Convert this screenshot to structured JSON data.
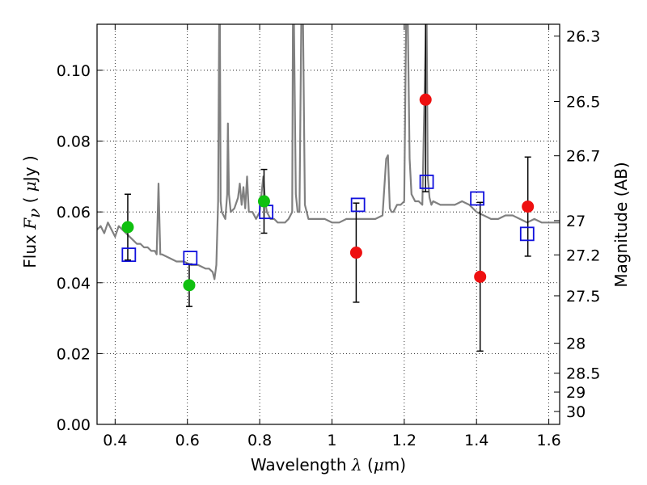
{
  "chart_data": {
    "type": "scatter",
    "title": "",
    "xlabel": {
      "prefix": "Wavelength",
      "symbol": "λ",
      "unit_open": " (",
      "unit_mu": "μ",
      "unit_rest": "m)"
    },
    "ylabel": {
      "prefix": "Flux",
      "symbol": "F",
      "subscript": "ν",
      "unit_open": "( ",
      "unit_mu": "μ",
      "unit_rest": "Jy )"
    },
    "y2label": "Magnitude (AB)",
    "xlim": [
      0.35,
      1.63
    ],
    "ylim": [
      0.0,
      0.113
    ],
    "grid": true,
    "x_ticks": [
      0.4,
      0.6,
      0.8,
      1.0,
      1.2,
      1.4,
      1.6
    ],
    "x_tick_labels": [
      "0.4",
      "0.6",
      "0.8",
      "1",
      "1.2",
      "1.4",
      "1.6"
    ],
    "y_ticks": [
      0.0,
      0.02,
      0.04,
      0.06,
      0.08,
      0.1
    ],
    "y_tick_labels": [
      "0.00",
      "0.02",
      "0.04",
      "0.06",
      "0.08",
      "0.10"
    ],
    "magnitude_ticks": [
      "26.3",
      "26.5",
      "26.7",
      "27",
      "27.2",
      "27.5",
      "28",
      "28.5",
      "29",
      "30"
    ],
    "colors": {
      "spectrum": "#808080",
      "green": "#10c010",
      "red": "#ee1010",
      "model": "#1010dd",
      "errorbar": "#000000"
    },
    "spectrum": {
      "x": [
        0.35,
        0.36,
        0.37,
        0.38,
        0.39,
        0.4,
        0.41,
        0.42,
        0.43,
        0.44,
        0.45,
        0.46,
        0.47,
        0.48,
        0.49,
        0.5,
        0.51,
        0.515,
        0.52,
        0.525,
        0.53,
        0.55,
        0.57,
        0.59,
        0.61,
        0.63,
        0.65,
        0.66,
        0.67,
        0.675,
        0.68,
        0.685,
        0.688,
        0.69,
        0.692,
        0.695,
        0.7,
        0.705,
        0.71,
        0.712,
        0.715,
        0.72,
        0.73,
        0.74,
        0.745,
        0.75,
        0.755,
        0.76,
        0.765,
        0.77,
        0.78,
        0.79,
        0.8,
        0.805,
        0.81,
        0.815,
        0.82,
        0.83,
        0.84,
        0.85,
        0.86,
        0.87,
        0.88,
        0.89,
        0.892,
        0.895,
        0.9,
        0.905,
        0.91,
        0.915,
        0.92,
        0.925,
        0.93,
        0.935,
        0.94,
        0.96,
        0.98,
        1.0,
        1.02,
        1.04,
        1.06,
        1.08,
        1.1,
        1.12,
        1.14,
        1.15,
        1.155,
        1.16,
        1.165,
        1.17,
        1.18,
        1.19,
        1.2,
        1.205,
        1.21,
        1.215,
        1.22,
        1.23,
        1.24,
        1.25,
        1.26,
        1.262,
        1.265,
        1.27,
        1.275,
        1.28,
        1.3,
        1.32,
        1.34,
        1.36,
        1.38,
        1.4,
        1.42,
        1.44,
        1.46,
        1.48,
        1.5,
        1.52,
        1.54,
        1.56,
        1.58,
        1.6,
        1.62,
        1.63
      ],
      "y": [
        0.055,
        0.056,
        0.054,
        0.057,
        0.055,
        0.053,
        0.056,
        0.055,
        0.054,
        0.053,
        0.052,
        0.051,
        0.051,
        0.05,
        0.05,
        0.049,
        0.049,
        0.048,
        0.068,
        0.048,
        0.048,
        0.047,
        0.046,
        0.046,
        0.045,
        0.045,
        0.044,
        0.044,
        0.043,
        0.041,
        0.045,
        0.063,
        0.113,
        0.113,
        0.063,
        0.06,
        0.059,
        0.058,
        0.065,
        0.085,
        0.065,
        0.06,
        0.061,
        0.064,
        0.068,
        0.062,
        0.067,
        0.061,
        0.07,
        0.06,
        0.06,
        0.058,
        0.06,
        0.065,
        0.07,
        0.063,
        0.06,
        0.058,
        0.058,
        0.057,
        0.057,
        0.057,
        0.058,
        0.06,
        0.113,
        0.113,
        0.065,
        0.06,
        0.06,
        0.113,
        0.113,
        0.062,
        0.06,
        0.058,
        0.058,
        0.058,
        0.058,
        0.057,
        0.057,
        0.058,
        0.058,
        0.058,
        0.058,
        0.058,
        0.059,
        0.075,
        0.076,
        0.061,
        0.06,
        0.06,
        0.062,
        0.062,
        0.063,
        0.113,
        0.113,
        0.075,
        0.065,
        0.063,
        0.063,
        0.062,
        0.113,
        0.113,
        0.07,
        0.064,
        0.062,
        0.063,
        0.062,
        0.062,
        0.062,
        0.063,
        0.062,
        0.06,
        0.059,
        0.058,
        0.058,
        0.059,
        0.059,
        0.058,
        0.057,
        0.058,
        0.057,
        0.057,
        0.057,
        0.057
      ]
    },
    "observed_green": [
      {
        "x": 0.435,
        "y": 0.0557,
        "err": 0.0093
      },
      {
        "x": 0.605,
        "y": 0.0393,
        "err": 0.006
      },
      {
        "x": 0.812,
        "y": 0.063,
        "err": 0.009
      }
    ],
    "observed_red": [
      {
        "x": 1.067,
        "y": 0.0485,
        "err": 0.014
      },
      {
        "x": 1.259,
        "y": 0.0917,
        "err": 0.026
      },
      {
        "x": 1.41,
        "y": 0.0417,
        "err": 0.021
      },
      {
        "x": 1.542,
        "y": 0.0615,
        "err": 0.014
      }
    ],
    "model_squares": [
      {
        "x": 0.438,
        "y": 0.0479
      },
      {
        "x": 0.608,
        "y": 0.047
      },
      {
        "x": 0.818,
        "y": 0.06
      },
      {
        "x": 1.072,
        "y": 0.062
      },
      {
        "x": 1.262,
        "y": 0.0685
      },
      {
        "x": 1.402,
        "y": 0.0638
      },
      {
        "x": 1.54,
        "y": 0.0538
      }
    ]
  }
}
